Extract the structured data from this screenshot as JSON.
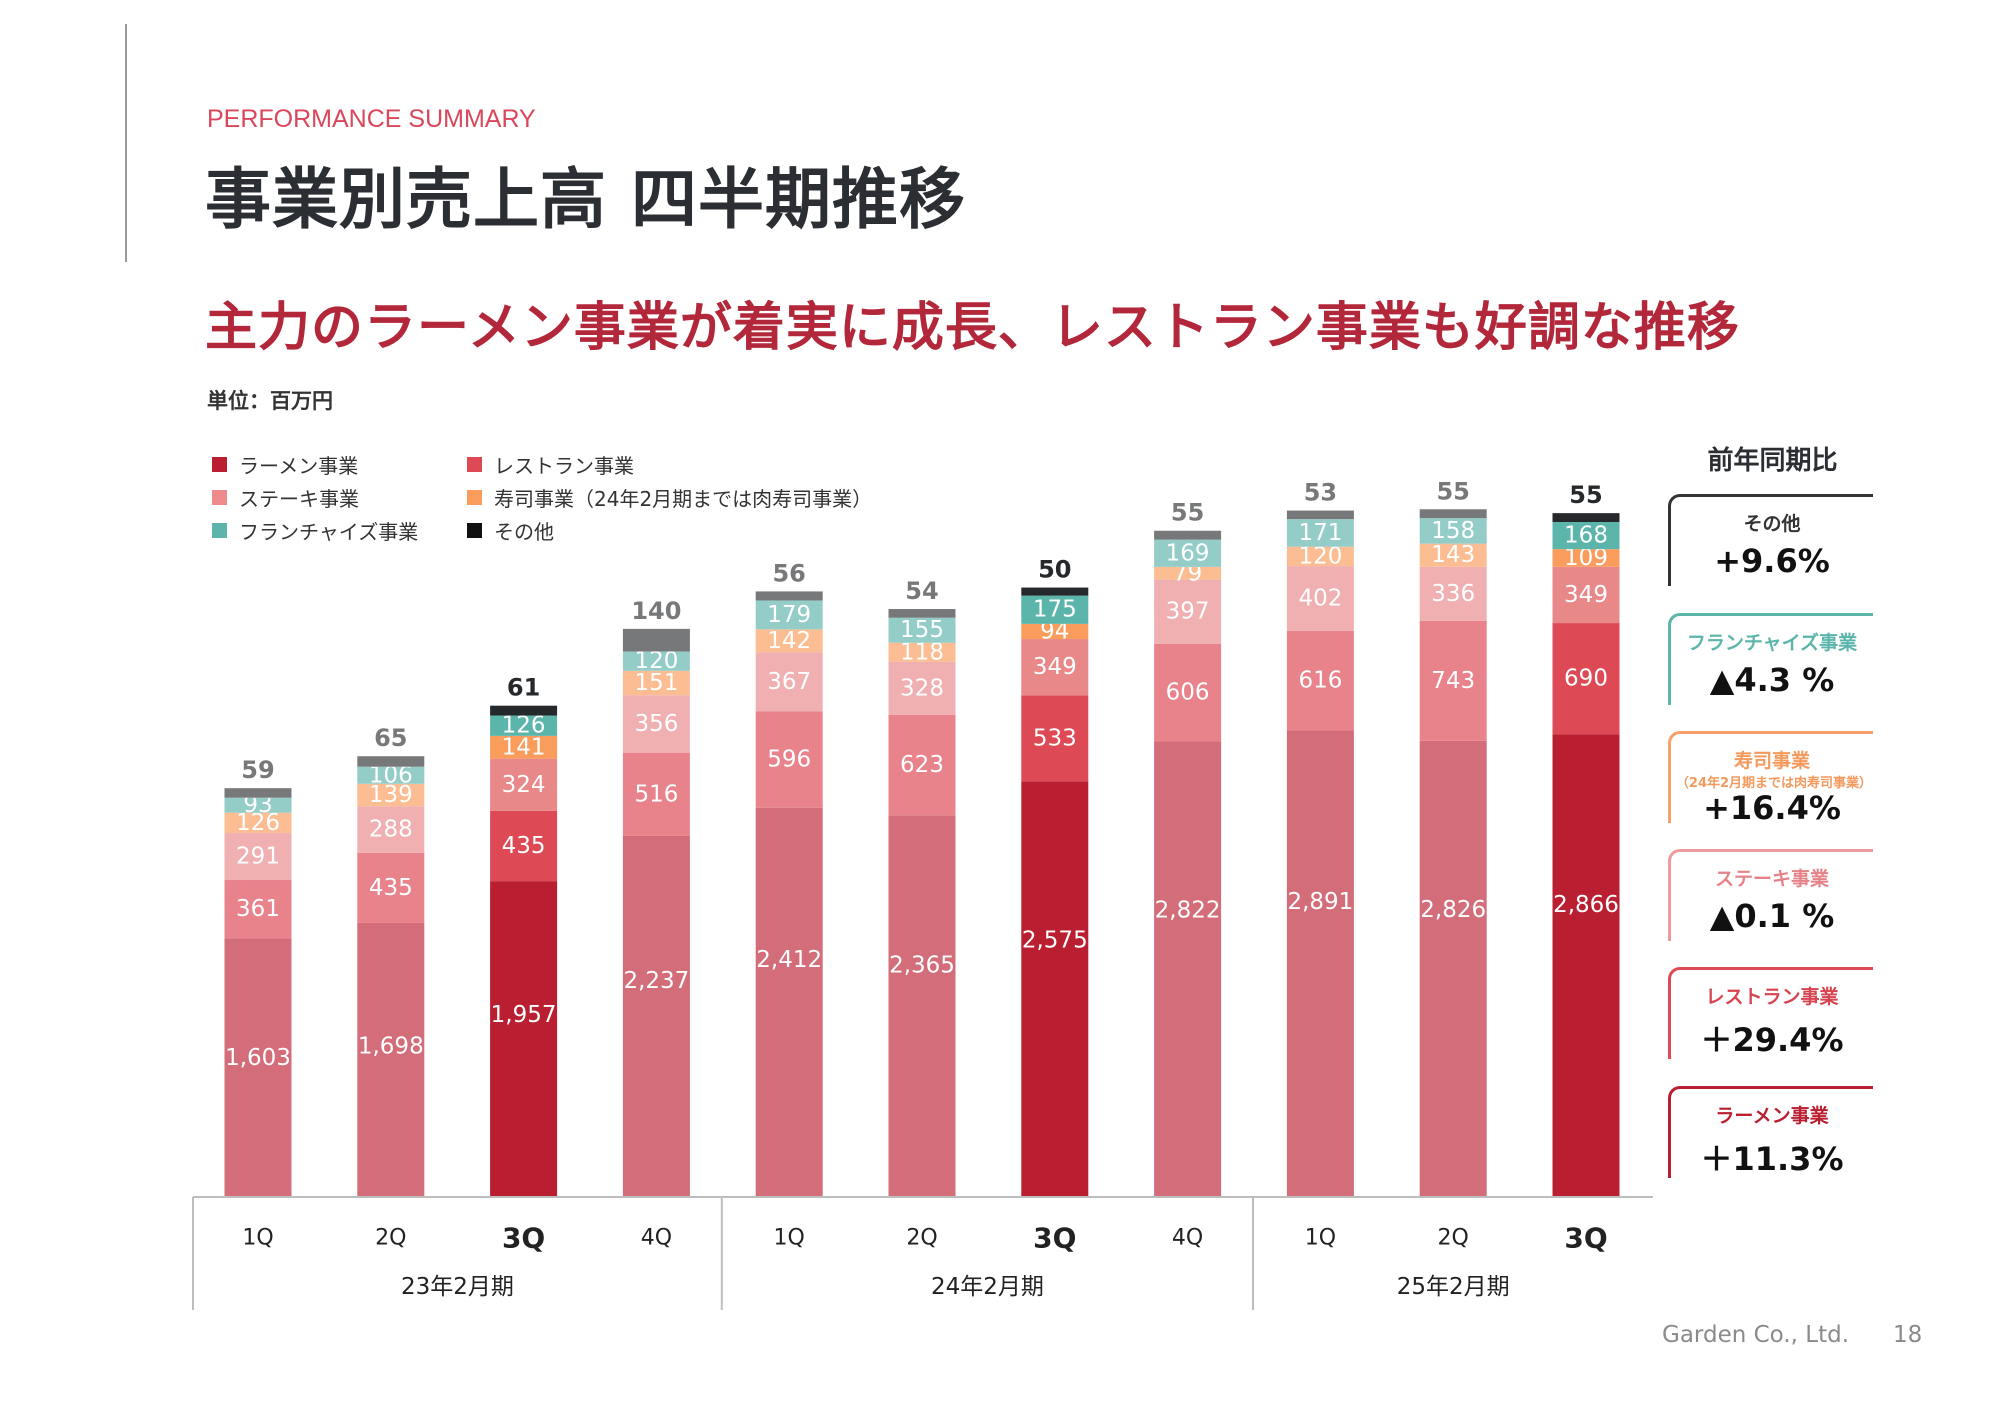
{
  "header": {
    "eyebrow": "PERFORMANCE SUMMARY",
    "title": "事業別売上高 四半期推移",
    "subtitle": "主力のラーメン事業が着実に成長、レストラン事業も好調な推移",
    "unit": "単位：百万円"
  },
  "legend": [
    {
      "label": "ラーメン事業",
      "color": "#b91f31"
    },
    {
      "label": "レストラン事業",
      "color": "#dd4a55"
    },
    {
      "label": "ステーキ事業",
      "color": "#ec8a8c"
    },
    {
      "label": "寿司事業（24年2月期までは肉寿司事業）",
      "color": "#f99c5c"
    },
    {
      "label": "フランチャイズ事業",
      "color": "#5bb5ab"
    },
    {
      "label": "その他",
      "color": "#111111"
    }
  ],
  "chart_data": {
    "type": "bar",
    "stacked": true,
    "title": "事業別売上高 四半期推移",
    "unit": "百万円",
    "xlabel": "",
    "ylabel": "",
    "categories": [
      "23年2月期 1Q",
      "23年2月期 2Q",
      "23年2月期 3Q",
      "23年2月期 4Q",
      "24年2月期 1Q",
      "24年2月期 2Q",
      "24年2月期 3Q",
      "24年2月期 4Q",
      "25年2月期 1Q",
      "25年2月期 2Q",
      "25年2月期 3Q"
    ],
    "quarter_labels": [
      "1Q",
      "2Q",
      "3Q",
      "4Q",
      "1Q",
      "2Q",
      "3Q",
      "4Q",
      "1Q",
      "2Q",
      "3Q"
    ],
    "highlight": [
      false,
      false,
      true,
      false,
      false,
      false,
      true,
      false,
      false,
      false,
      true
    ],
    "periods": [
      {
        "label": "23年2月期",
        "count": 4
      },
      {
        "label": "24年2月期",
        "count": 4
      },
      {
        "label": "25年2月期",
        "count": 3
      }
    ],
    "series": [
      {
        "name": "ラーメン事業",
        "values": [
          1603,
          1698,
          1957,
          2237,
          2412,
          2365,
          2575,
          2822,
          2891,
          2826,
          2866
        ],
        "labels": [
          "1,603",
          "1,698",
          "1,957",
          "2,237",
          "2,412",
          "2,365",
          "2,575",
          "2,822",
          "2,891",
          "2,826",
          "2,866"
        ]
      },
      {
        "name": "レストラン事業",
        "values": [
          361,
          435,
          435,
          516,
          596,
          623,
          533,
          606,
          616,
          743,
          690
        ],
        "labels": [
          "361",
          "435",
          "435",
          "516",
          "596",
          "623",
          "533",
          "606",
          "616",
          "743",
          "690"
        ]
      },
      {
        "name": "ステーキ事業",
        "values": [
          291,
          288,
          324,
          356,
          367,
          328,
          349,
          397,
          402,
          336,
          349
        ],
        "labels": [
          "291",
          "288",
          "324",
          "356",
          "367",
          "328",
          "349",
          "397",
          "402",
          "336",
          "349"
        ]
      },
      {
        "name": "寿司事業（24年2月期までは肉寿司事業）",
        "values": [
          126,
          139,
          141,
          151,
          142,
          118,
          94,
          79,
          120,
          143,
          109
        ],
        "labels": [
          "126",
          "139",
          "141",
          "151",
          "142",
          "118",
          "94",
          "79",
          "120",
          "143",
          "109"
        ]
      },
      {
        "name": "フランチャイズ事業",
        "values": [
          93,
          106,
          126,
          120,
          179,
          155,
          175,
          169,
          171,
          158,
          168
        ],
        "labels": [
          "93",
          "106",
          "126",
          "120",
          "179",
          "155",
          "175",
          "169",
          "171",
          "158",
          "168"
        ]
      },
      {
        "name": "その他",
        "values": [
          59,
          65,
          61,
          140,
          56,
          54,
          50,
          55,
          53,
          55,
          55
        ],
        "labels": [
          "59",
          "65",
          "61",
          "140",
          "56",
          "54",
          "50",
          "55",
          "53",
          "55",
          "55"
        ]
      }
    ],
    "colors": {
      "normal": [
        "#d36d79",
        "#e8838c",
        "#f0b0b2",
        "#fbbd91",
        "#94cdc8",
        "#77787a"
      ],
      "highlight": [
        "#b91f31",
        "#dd4a55",
        "#e98888",
        "#f99c5c",
        "#5bb5ab",
        "#26292c"
      ]
    },
    "ylim": [
      0,
      4000
    ],
    "grid": false,
    "legend_position": "top-left"
  },
  "yoy": {
    "title": "前年同期比",
    "items": [
      {
        "name": "その他",
        "note": "",
        "value": "+9.6%",
        "color": "#333333",
        "name_color": "#333333"
      },
      {
        "name": "フランチャイズ事業",
        "note": "",
        "value": "▲4.3 %",
        "color": "#5bb5ab",
        "name_color": "#5bb5ab"
      },
      {
        "name": "寿司事業",
        "note": "（24年2月期までは肉寿司事業）",
        "value": "+16.4%",
        "color": "#f7a06a",
        "name_color": "#f39a5e"
      },
      {
        "name": "ステーキ事業",
        "note": "",
        "value": "▲0.1 %",
        "color": "#ec9b9e",
        "name_color": "#e58288"
      },
      {
        "name": "レストラン事業",
        "note": "",
        "value": "＋29.4%",
        "color": "#dd4a55",
        "name_color": "#d6444f"
      },
      {
        "name": "ラーメン事業",
        "note": "",
        "value": "＋11.3%",
        "color": "#b91f31",
        "name_color": "#b91f31"
      }
    ]
  },
  "footer": {
    "company": "Garden Co., Ltd.",
    "page": "18"
  }
}
